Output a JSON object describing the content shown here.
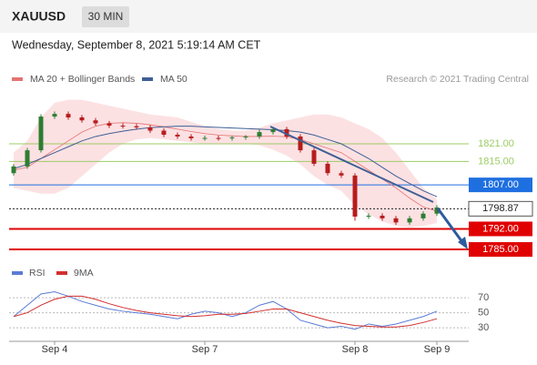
{
  "header": {
    "symbol": "XAUUSD",
    "interval": "30 MIN",
    "datetime": "Wednesday, September 8, 2021 5:19:14 AM CET",
    "credit": "Research © 2021 Trading Central"
  },
  "chart_data": [
    {
      "type": "candlestick",
      "categories": [
        null,
        null,
        null,
        "Sep 4",
        null,
        null,
        null,
        null,
        null,
        null,
        null,
        null,
        null,
        null,
        "Sep 7",
        null,
        null,
        null,
        null,
        null,
        null,
        null,
        null,
        null,
        null,
        "Sep 8",
        null,
        null,
        null,
        null,
        null,
        "Sep 9"
      ],
      "open": [
        1811,
        1813.3,
        1818.8,
        1830.3,
        1831.2,
        1830,
        1829,
        1828,
        1827.2,
        1827,
        1826.6,
        1825.5,
        1824.1,
        1823.5,
        1822.9,
        1823,
        1822.9,
        1823.2,
        1823.5,
        1825,
        1826,
        1823.5,
        1818.8,
        1814.2,
        1811,
        1810.2,
        1796.2,
        1796.5,
        1795.6,
        1794.2,
        1795.6,
        1797.2
      ],
      "close": [
        1813.3,
        1818.8,
        1830.3,
        1831.2,
        1830,
        1829,
        1828,
        1827.2,
        1827,
        1826.6,
        1825.5,
        1824.1,
        1823.5,
        1822.9,
        1823,
        1822.9,
        1823.2,
        1823.5,
        1825,
        1826,
        1823.5,
        1818.8,
        1814.2,
        1811,
        1810.2,
        1796.2,
        1796.5,
        1795.6,
        1794.2,
        1795.6,
        1797.2,
        1799.3
      ],
      "high": [
        1814.1,
        1819.6,
        1831.1,
        1832,
        1832,
        1830.8,
        1829.8,
        1828.8,
        1828,
        1827.8,
        1827.4,
        1826.3,
        1824.9,
        1824.3,
        1823.8,
        1823.8,
        1823.7,
        1824,
        1825.8,
        1826.8,
        1826.8,
        1824.3,
        1819.6,
        1815,
        1811.8,
        1811,
        1797.3,
        1797.3,
        1796.4,
        1796.4,
        1798,
        1800.1
      ],
      "low": [
        1810.2,
        1812.5,
        1818,
        1829.5,
        1829.2,
        1828.2,
        1827.2,
        1826.4,
        1826.2,
        1825.8,
        1824.7,
        1823.3,
        1822.7,
        1822.1,
        1822.1,
        1822.1,
        1822.1,
        1822.4,
        1822.7,
        1824.2,
        1822.7,
        1818,
        1813.4,
        1810.2,
        1809.4,
        1794.8,
        1795.4,
        1794.8,
        1793.4,
        1793.4,
        1794.8,
        1796.4
      ],
      "up_color": "#2e7d32",
      "down_color": "#b71c1c",
      "series": [
        {
          "name": "MA 20 + Bollinger Bands",
          "color": "#e57373",
          "values": [
            1812,
            1813,
            1816,
            1819,
            1822,
            1825,
            1827,
            1828,
            1828.2,
            1828,
            1827.5,
            1826.8,
            1826,
            1825.2,
            1824.5,
            1824,
            1823.7,
            1823.5,
            1823.5,
            1823.6,
            1823.4,
            1822.5,
            1821,
            1819.5,
            1818,
            1815,
            1812,
            1809,
            1806,
            1802.5,
            1799.5,
            1798
          ]
        },
        {
          "name": "MA 50",
          "color": "#3f5f95",
          "values": [
            1812.5,
            1814,
            1816,
            1818,
            1820,
            1822,
            1823.5,
            1824.5,
            1825.3,
            1826,
            1826.5,
            1826.8,
            1827,
            1827,
            1826.8,
            1826.6,
            1826.4,
            1826.2,
            1826,
            1825.8,
            1825.5,
            1825,
            1824,
            1822.5,
            1821,
            1818.5,
            1816,
            1813,
            1810,
            1807.5,
            1805,
            1803
          ]
        }
      ],
      "band_upper": [
        1818,
        1822,
        1830,
        1835,
        1836,
        1836,
        1835,
        1834,
        1833,
        1832,
        1831,
        1830.5,
        1830,
        1828.5,
        1827,
        1826,
        1825.5,
        1825.5,
        1826.5,
        1828,
        1829,
        1830,
        1831,
        1831,
        1830,
        1828,
        1826,
        1823,
        1818,
        1812,
        1806,
        1802
      ],
      "band_lower": [
        1806,
        1805,
        1804,
        1804,
        1806,
        1810,
        1814,
        1818,
        1821,
        1822.5,
        1823,
        1822.5,
        1822,
        1821.5,
        1821,
        1821,
        1821,
        1821,
        1820.5,
        1819,
        1817,
        1814,
        1810,
        1807,
        1805,
        1800,
        1797,
        1794.5,
        1793,
        1792.5,
        1793,
        1794
      ],
      "band_color": "#fbd9dc",
      "levels": [
        {
          "value": 1821,
          "label": "1821.00",
          "color": "#9ccc65",
          "boxed": false
        },
        {
          "value": 1815,
          "label": "1815.00",
          "color": "#9ccc65",
          "boxed": false
        },
        {
          "value": 1807,
          "label": "1807.00",
          "color": "#1e6fe0",
          "boxed": true
        },
        {
          "value": 1798.87,
          "label": "1798.87",
          "color": "#222222",
          "boxed": false
        },
        {
          "value": 1792,
          "label": "1792.00",
          "color": "#e00000",
          "boxed": true
        },
        {
          "value": 1785,
          "label": "1785.00",
          "color": "#e00000",
          "boxed": true
        }
      ],
      "ylim": [
        1781.6,
        1839
      ]
    },
    {
      "type": "line",
      "series": [
        {
          "name": "RSI",
          "color": "#5b7bd5",
          "values": [
            45,
            60,
            75,
            78,
            72,
            65,
            60,
            55,
            52,
            50,
            48,
            45,
            42,
            48,
            52,
            50,
            45,
            50,
            60,
            65,
            55,
            40,
            35,
            30,
            32,
            28,
            35,
            32,
            35,
            40,
            45,
            52
          ]
        },
        {
          "name": "9MA",
          "color": "#d32f2f",
          "values": [
            45,
            50,
            60,
            68,
            72,
            72,
            68,
            62,
            57,
            53,
            50,
            48,
            46,
            45,
            46,
            48,
            48,
            49,
            52,
            55,
            55,
            50,
            45,
            40,
            36,
            33,
            32,
            31,
            31,
            33,
            37,
            42
          ]
        }
      ],
      "ylim": [
        18,
        81
      ],
      "yticks": [
        70,
        50,
        30
      ],
      "grid": true
    }
  ]
}
